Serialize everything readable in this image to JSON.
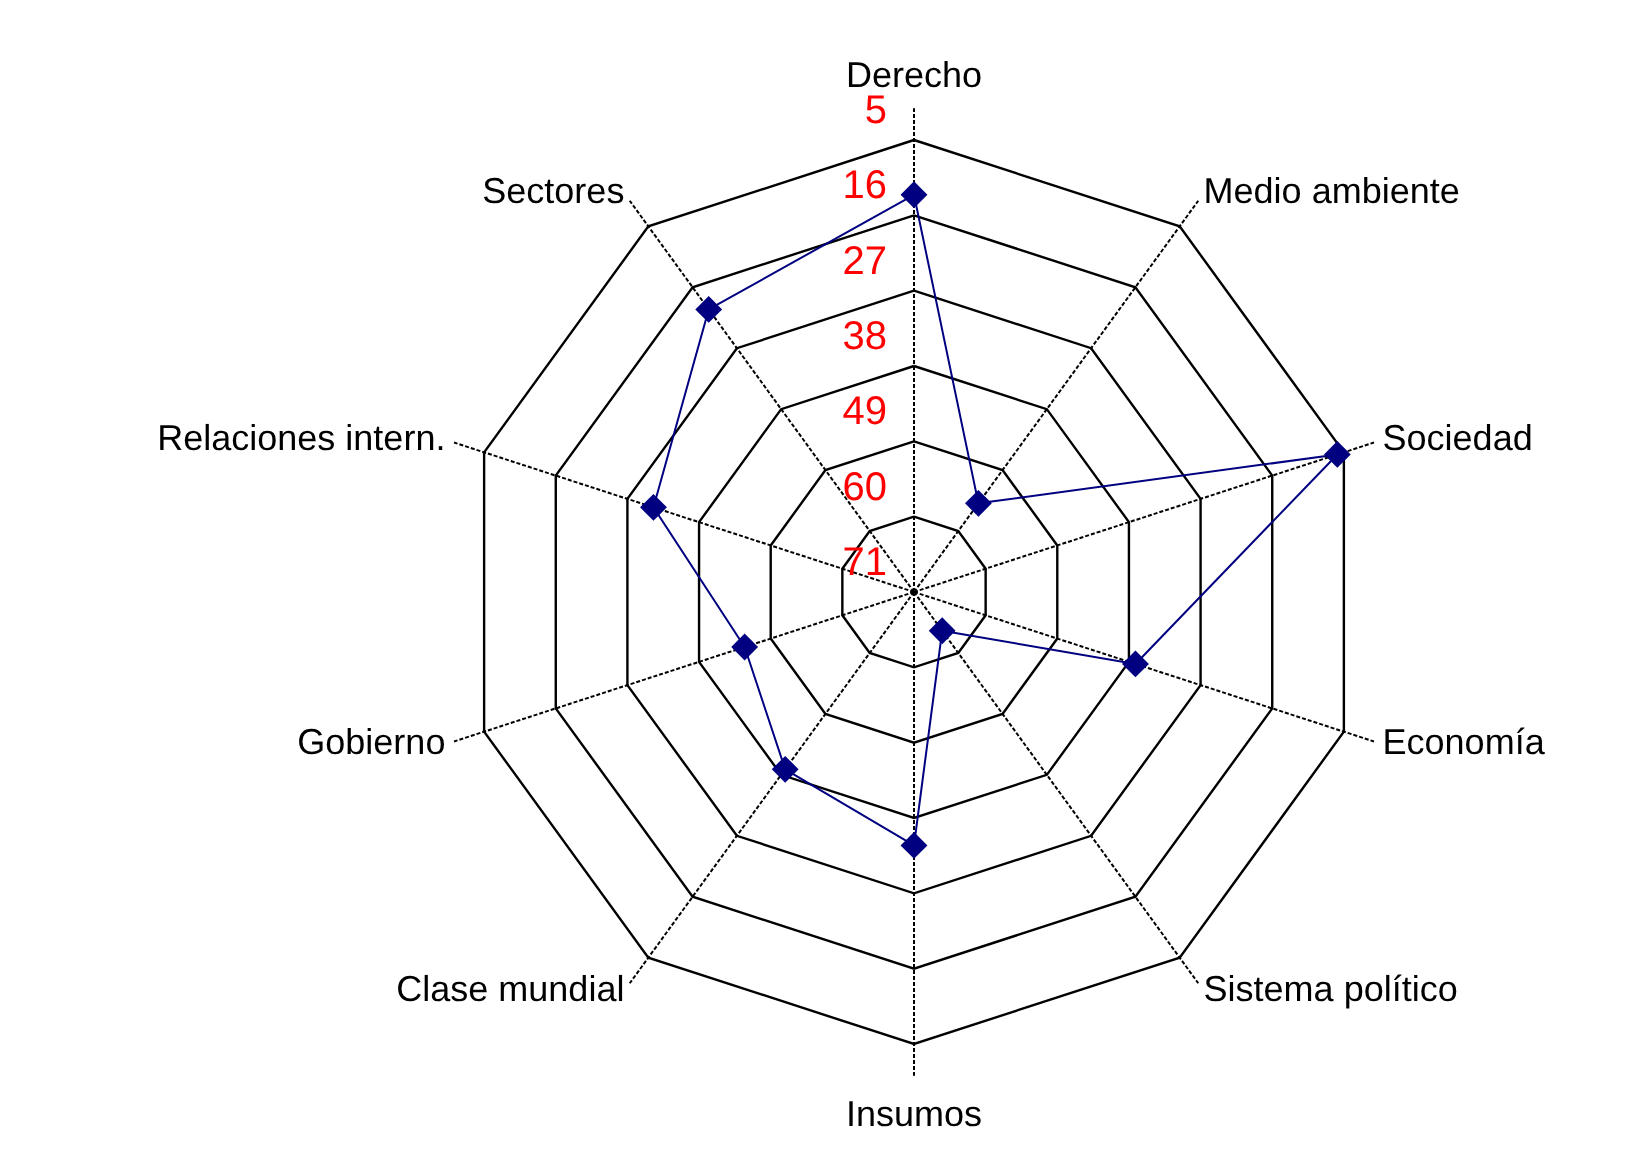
{
  "chart_data": {
    "type": "radar",
    "categories": [
      "Derecho",
      "Medio ambiente",
      "Sociedad",
      "Economía",
      "Sistema político",
      "Insumos",
      "Clase mundial",
      "Gobierno",
      "Relaciones intern.",
      "Sectores"
    ],
    "series": [
      {
        "color": "#000080",
        "values": [
          13,
          55,
          6,
          37,
          64,
          34,
          39,
          45,
          31,
          20
        ]
      }
    ],
    "ylim": [
      71,
      5
    ],
    "yticks": [
      5,
      16,
      27,
      38,
      49,
      60,
      71
    ],
    "marker": "diamond",
    "line_style": "solid",
    "grid": true
  }
}
